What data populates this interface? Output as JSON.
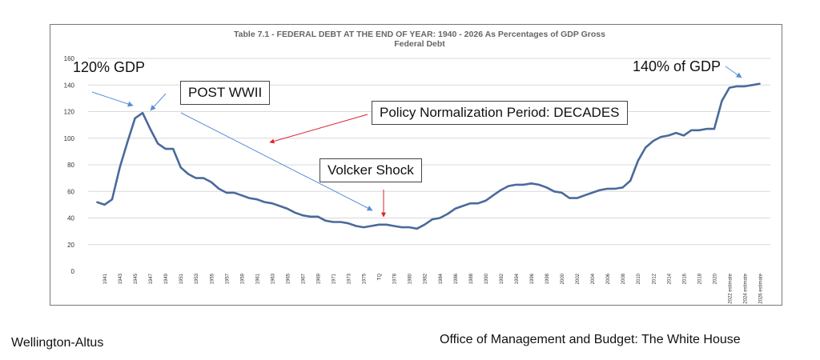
{
  "chart_data": {
    "type": "line",
    "title": "Table 7.1 - FEDERAL DEBT AT THE END OF YEAR:  1940 - 2026 As Percentages of GDP Gross",
    "subtitle": "Federal Debt",
    "xlabel": "",
    "ylabel": "",
    "ylim": [
      0,
      160
    ],
    "yticks": [
      "0",
      "20",
      "40",
      "60",
      "80",
      "100",
      "120",
      "140",
      "160"
    ],
    "grid": true,
    "legend": "none",
    "line_color": "#4a6a9b",
    "x": [
      "1940",
      "1941",
      "1942",
      "1943",
      "1944",
      "1945",
      "1946",
      "1947",
      "1948",
      "1949",
      "1950",
      "1951",
      "1952",
      "1953",
      "1954",
      "1955",
      "1956",
      "1957",
      "1958",
      "1959",
      "1960",
      "1961",
      "1962",
      "1963",
      "1964",
      "1965",
      "1966",
      "1967",
      "1968",
      "1969",
      "1970",
      "1971",
      "1972",
      "1973",
      "1974",
      "1975",
      "1976",
      "TQ",
      "1977",
      "1978",
      "1979",
      "1980",
      "1981",
      "1982",
      "1983",
      "1984",
      "1985",
      "1986",
      "1987",
      "1988",
      "1989",
      "1990",
      "1991",
      "1992",
      "1993",
      "1994",
      "1995",
      "1996",
      "1997",
      "1998",
      "1999",
      "2000",
      "2001",
      "2002",
      "2003",
      "2004",
      "2005",
      "2006",
      "2007",
      "2008",
      "2009",
      "2010",
      "2011",
      "2012",
      "2013",
      "2014",
      "2015",
      "2016",
      "2017",
      "2018",
      "2019",
      "2020",
      "2021 estimate",
      "2022 estimate",
      "2023 estimate",
      "2024 estimate",
      "2025 estimate",
      "2026 estimate"
    ],
    "x_tick_labels": [
      "1941",
      "1943",
      "1945",
      "1947",
      "1949",
      "1951",
      "1953",
      "1955",
      "1957",
      "1959",
      "1961",
      "1963",
      "1965",
      "1967",
      "1969",
      "1971",
      "1973",
      "1975",
      "TQ",
      "1978",
      "1980",
      "1982",
      "1984",
      "1986",
      "1988",
      "1990",
      "1992",
      "1994",
      "1996",
      "1998",
      "2000",
      "2002",
      "2004",
      "2006",
      "2008",
      "2010",
      "2012",
      "2014",
      "2016",
      "2018",
      "2020",
      "2022 estimate",
      "2024 estimate",
      "2026 estimate"
    ],
    "values": [
      52,
      50,
      54,
      78,
      97,
      115,
      119,
      107,
      96,
      92,
      92,
      78,
      73,
      70,
      70,
      67,
      62,
      59,
      59,
      57,
      55,
      54,
      52,
      51,
      49,
      47,
      44,
      42,
      41,
      41,
      38,
      37,
      37,
      36,
      34,
      33,
      34,
      35,
      35,
      34,
      33,
      33,
      32,
      35,
      39,
      40,
      43,
      47,
      49,
      51,
      51,
      53,
      57,
      61,
      64,
      65,
      65,
      66,
      65,
      63,
      60,
      59,
      55,
      55,
      57,
      59,
      61,
      62,
      62,
      63,
      68,
      83,
      93,
      98,
      101,
      102,
      104,
      102,
      106,
      106,
      107,
      107,
      128,
      138,
      139,
      139,
      140,
      141
    ]
  },
  "annotations": {
    "gdp_120": "120% GDP",
    "post_wwii": "POST WWII",
    "policy_normalization": "Policy Normalization Period: DECADES",
    "volcker_shock": "Volcker Shock",
    "gdp_140": "140% of GDP"
  },
  "footer": {
    "left": "Wellington-Altus",
    "right": "Office of Management and Budget: The White House"
  },
  "colors": {
    "line": "#4a6a9b",
    "arrow_blue": "#5b8dd6",
    "arrow_red": "#d9242b",
    "grid": "#d9d9d9"
  }
}
